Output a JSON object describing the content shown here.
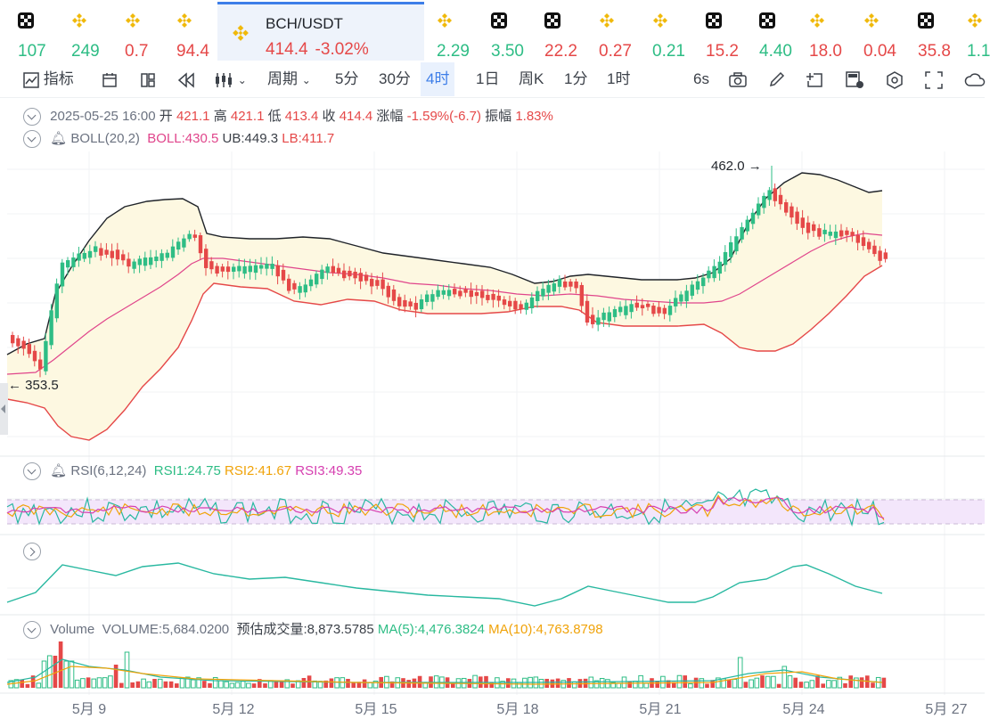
{
  "ticker": {
    "items": [
      {
        "icon": "okx-icon",
        "value": "107",
        "trend": "up"
      },
      {
        "icon": "binance-icon",
        "value": "249",
        "trend": "up"
      },
      {
        "icon": "binance-icon",
        "value": "0.7",
        "trend": "dn"
      },
      {
        "icon": "binance-icon",
        "value": "94.4",
        "trend": "dn"
      },
      {
        "icon": "binance-icon",
        "value": "2.29",
        "trend": "up"
      },
      {
        "icon": "okx-icon",
        "value": "3.50",
        "trend": "up"
      },
      {
        "icon": "okx-icon",
        "value": "22.2",
        "trend": "dn"
      },
      {
        "icon": "binance-icon",
        "value": "0.27",
        "trend": "dn"
      },
      {
        "icon": "binance-icon",
        "value": "0.21",
        "trend": "up"
      },
      {
        "icon": "okx-icon",
        "value": "15.2",
        "trend": "dn"
      },
      {
        "icon": "okx-icon",
        "value": "4.40",
        "trend": "up"
      },
      {
        "icon": "binance-icon",
        "value": "18.0",
        "trend": "dn"
      },
      {
        "icon": "binance-icon",
        "value": "0.04",
        "trend": "dn"
      },
      {
        "icon": "okx-icon",
        "value": "35.8",
        "trend": "dn"
      },
      {
        "icon": "binance-icon",
        "value": "1.1",
        "trend": "up"
      }
    ],
    "active": {
      "pair": "BCH/USDT",
      "price": "414.4",
      "change": "-3.02%"
    }
  },
  "toolbar": {
    "indicator_label": "指标",
    "period_label": "周期",
    "intervals": [
      "5分",
      "30分",
      "4时",
      "1日",
      "周K",
      "1分",
      "1时"
    ],
    "active_interval": "4时",
    "refresh_label": "6s"
  },
  "ohlc": {
    "date": "2025-05-25 16:00",
    "open_label": "开",
    "open": "421.1",
    "high_label": "高",
    "high": "421.1",
    "low_label": "低",
    "low": "413.4",
    "close_label": "收",
    "close": "414.4",
    "change_label": "涨幅",
    "change": "-1.59%(-6.7)",
    "amplitude_label": "振幅",
    "amplitude": "1.83%"
  },
  "boll": {
    "name": "BOLL(20,2)",
    "mid": "BOLL:430.5",
    "ub": "UB:449.3",
    "lb": "LB:411.7"
  },
  "rsi": {
    "name": "RSI(6,12,24)",
    "rsi1": "RSI1:24.75",
    "rsi2": "RSI2:41.67",
    "rsi3": "RSI3:49.35"
  },
  "volume": {
    "name": "Volume",
    "value": "VOLUME:5,684.0200",
    "estimate": "预估成交量:8,873.5785",
    "ma5": "MA(5):4,476.3824",
    "ma10": "MA(10):4,763.8798"
  },
  "markers": {
    "high": "462.0",
    "low": "353.5"
  },
  "x_axis": [
    "5月 9",
    "5月 12",
    "5月 15",
    "5月 18",
    "5月 21",
    "5月 24",
    "5月 27"
  ],
  "colors": {
    "up": "#2ebd85",
    "down": "#e54848",
    "accent": "#3d7ee8",
    "boll_mid": "#e0458b",
    "ub": "#1f2329",
    "lb": "#e54848"
  }
}
